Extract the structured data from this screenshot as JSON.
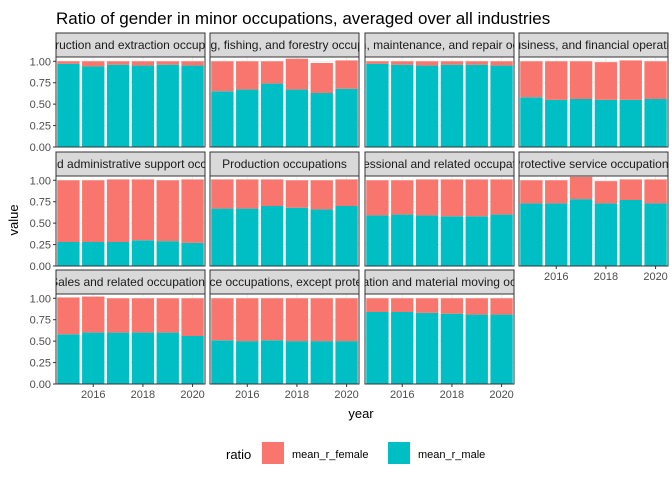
{
  "chart_data": {
    "type": "bar",
    "stacked": true,
    "faceted": true,
    "title": "Ratio of gender in minor occupations, averaged over all industries",
    "xlabel": "year",
    "ylabel": "value",
    "xlim": [
      2014.5,
      2020.5
    ],
    "ylim": [
      0,
      1.05
    ],
    "x_ticks": [
      "2016",
      "2018",
      "2020"
    ],
    "y_ticks": [
      "0.00",
      "0.25",
      "0.50",
      "0.75",
      "1.00"
    ],
    "years": [
      2015,
      2016,
      2017,
      2018,
      2019,
      2020
    ],
    "legend": {
      "title": "ratio",
      "position": "bottom",
      "entries": [
        {
          "label": "mean_r_female",
          "color": "#F8766D"
        },
        {
          "label": "mean_r_male",
          "color": "#00BFC4"
        }
      ]
    },
    "facets": [
      {
        "label": "Construction and extraction occupations",
        "male": [
          0.97,
          0.94,
          0.96,
          0.95,
          0.96,
          0.95
        ],
        "female": [
          0.03,
          0.06,
          0.04,
          0.05,
          0.04,
          0.05
        ]
      },
      {
        "label": "Farming, fishing, and forestry occupations",
        "male": [
          0.65,
          0.67,
          0.74,
          0.67,
          0.63,
          0.68
        ],
        "female": [
          0.35,
          0.33,
          0.26,
          0.36,
          0.35,
          0.33
        ]
      },
      {
        "label": "Installation, maintenance, and repair occupations",
        "male": [
          0.97,
          0.96,
          0.95,
          0.96,
          0.96,
          0.95
        ],
        "female": [
          0.03,
          0.04,
          0.05,
          0.04,
          0.04,
          0.05
        ]
      },
      {
        "label": "Management, business, and financial operations occupations",
        "male": [
          0.58,
          0.55,
          0.56,
          0.55,
          0.55,
          0.56
        ],
        "female": [
          0.42,
          0.45,
          0.44,
          0.44,
          0.46,
          0.44
        ]
      },
      {
        "label": "Office and administrative support occupations",
        "male": [
          0.28,
          0.28,
          0.28,
          0.3,
          0.29,
          0.27
        ],
        "female": [
          0.72,
          0.72,
          0.73,
          0.71,
          0.71,
          0.74
        ]
      },
      {
        "label": "Production occupations",
        "male": [
          0.67,
          0.67,
          0.7,
          0.68,
          0.66,
          0.7
        ],
        "female": [
          0.34,
          0.34,
          0.31,
          0.32,
          0.34,
          0.31
        ]
      },
      {
        "label": "Professional and related occupations",
        "male": [
          0.59,
          0.6,
          0.59,
          0.58,
          0.58,
          0.6
        ],
        "female": [
          0.41,
          0.4,
          0.42,
          0.43,
          0.43,
          0.41
        ]
      },
      {
        "label": "Protective service occupations",
        "male": [
          0.73,
          0.73,
          0.78,
          0.73,
          0.77,
          0.73
        ],
        "female": [
          0.27,
          0.27,
          0.26,
          0.26,
          0.24,
          0.28
        ]
      },
      {
        "label": "Sales and related occupations",
        "male": [
          0.58,
          0.6,
          0.6,
          0.6,
          0.6,
          0.56
        ],
        "female": [
          0.43,
          0.42,
          0.4,
          0.4,
          0.4,
          0.44
        ]
      },
      {
        "label": "Service occupations, except protective",
        "male": [
          0.51,
          0.5,
          0.51,
          0.5,
          0.5,
          0.5
        ],
        "female": [
          0.49,
          0.5,
          0.49,
          0.5,
          0.5,
          0.5
        ]
      },
      {
        "label": "Transportation and material moving occupations",
        "male": [
          0.84,
          0.84,
          0.83,
          0.82,
          0.81,
          0.81
        ],
        "female": [
          0.16,
          0.16,
          0.17,
          0.18,
          0.19,
          0.19
        ]
      }
    ]
  }
}
